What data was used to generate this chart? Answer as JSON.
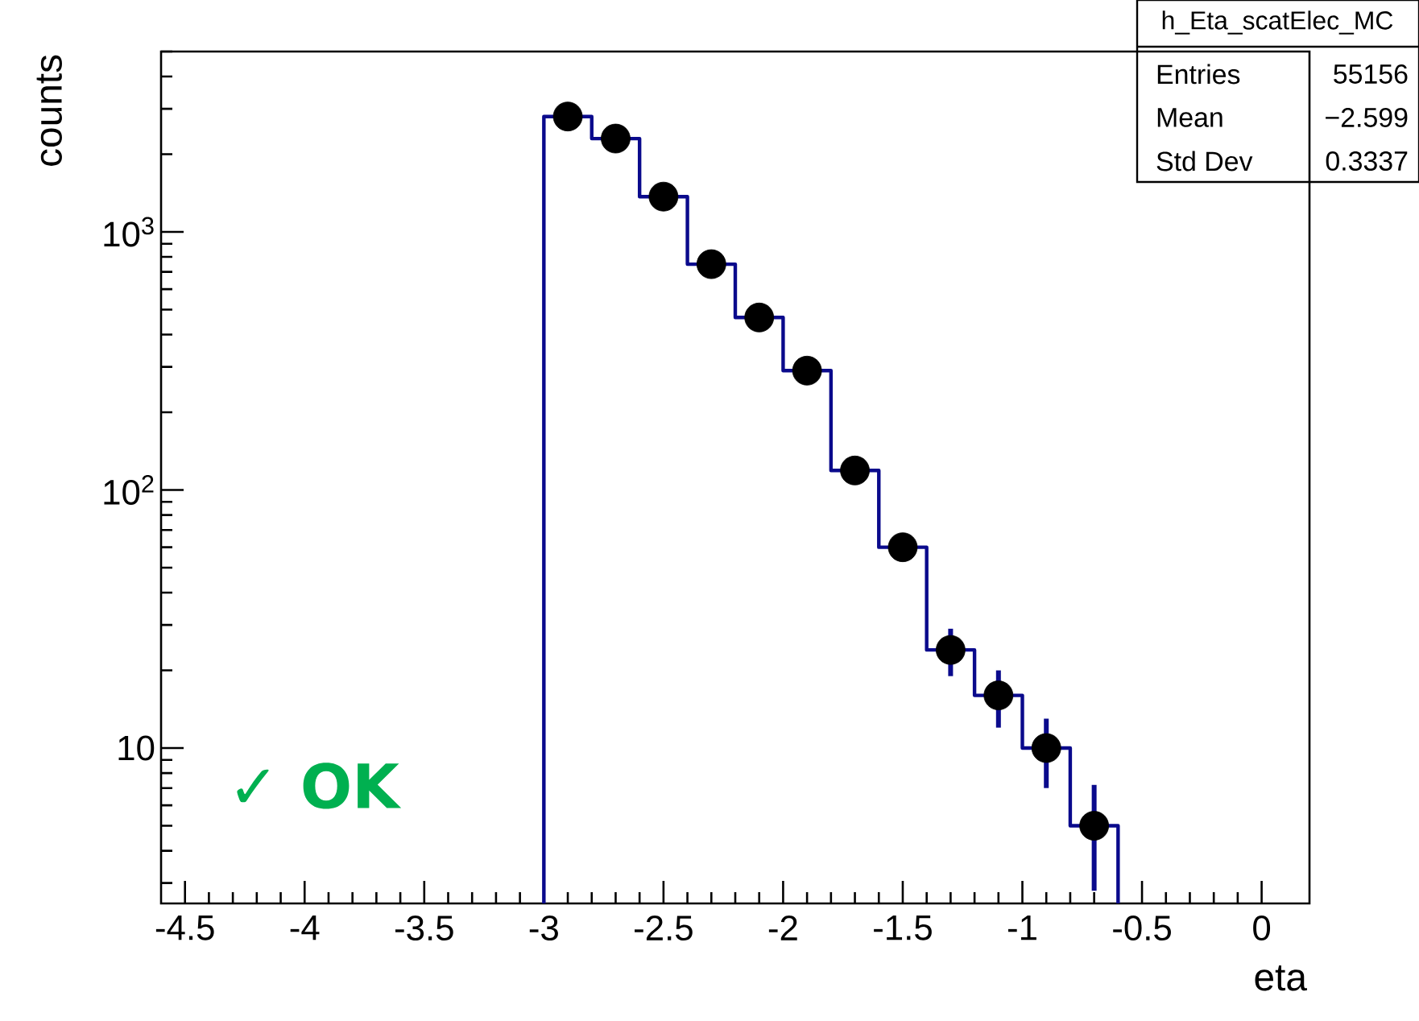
{
  "chart_data": {
    "type": "histogram",
    "xlabel": "eta",
    "ylabel": "counts",
    "bins": [
      -3.0,
      -2.8,
      -2.6,
      -2.4,
      -2.2,
      -2.0,
      -1.8,
      -1.6,
      -1.4,
      -1.2,
      -1.0,
      -0.8,
      -0.6
    ],
    "series": [
      {
        "type": "histogram",
        "color": "#0a0a8c",
        "values": [
          2800,
          2300,
          1370,
          750,
          466,
          290,
          119,
          60,
          24,
          16,
          10,
          5
        ]
      },
      {
        "type": "scatter",
        "color": "#000000",
        "marker": "circle",
        "x": [
          -2.9,
          -2.7,
          -2.5,
          -2.3,
          -2.1,
          -1.9,
          -1.7,
          -1.5,
          -1.3,
          -1.1,
          -0.9,
          -0.7
        ],
        "values": [
          2800,
          2300,
          1370,
          750,
          466,
          290,
          119,
          60,
          24,
          16,
          10,
          5
        ],
        "errors": [
          null,
          null,
          null,
          null,
          null,
          null,
          null,
          null,
          5,
          4,
          3,
          2.2
        ]
      }
    ],
    "log": "y",
    "xlim": [
      -4.6,
      0.2
    ],
    "xticks": [
      -4.5,
      -4,
      -3.5,
      -3,
      -2.5,
      -2,
      -1.5,
      -1,
      -0.5,
      0
    ],
    "ylim": [
      2.5,
      5000
    ],
    "yticks": [
      10,
      {
        "value": 100,
        "label": "10$^{2}$"
      },
      {
        "value": 1000,
        "label": "10$^{3}$"
      }
    ],
    "annotations": [
      "h_Eta_scatElec_MC",
      "Entries",
      "55156",
      "Mean",
      "−2.599",
      "Std Dev",
      "0.3337",
      "✓ OK"
    ]
  }
}
